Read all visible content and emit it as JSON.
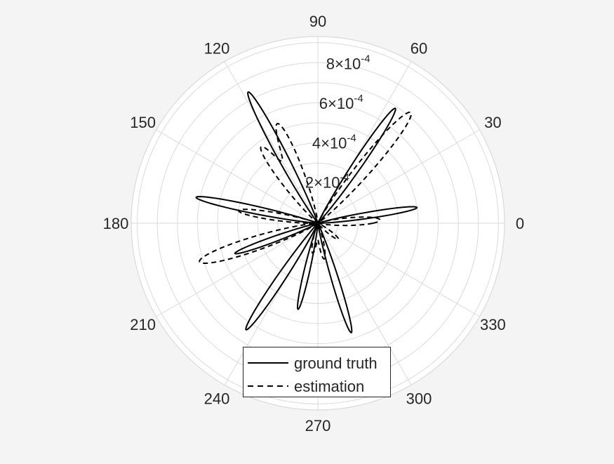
{
  "chart_data": {
    "type": "polar-line",
    "angle_ticks": [
      "0",
      "30",
      "60",
      "90",
      "120",
      "150",
      "180",
      "210",
      "240",
      "270",
      "300",
      "330"
    ],
    "angle_tick_values": [
      0,
      30,
      60,
      90,
      120,
      150,
      180,
      210,
      240,
      270,
      300,
      330
    ],
    "radial_ticks": [
      {
        "value": 0.0002,
        "mantissa": "2",
        "exponent": "-4"
      },
      {
        "value": 0.0004,
        "mantissa": "4",
        "exponent": "-4"
      },
      {
        "value": 0.0006,
        "mantissa": "6",
        "exponent": "-4"
      },
      {
        "value": 0.0008,
        "mantissa": "8",
        "exponent": "-4"
      }
    ],
    "radial_times_symbol": "×10",
    "rlim": [
      0,
      0.00093
    ],
    "grid": true,
    "legend_position": "bottom",
    "series": [
      {
        "name": "ground truth",
        "style": "solid",
        "color": "#000000",
        "lobes": [
          {
            "angle_deg": 9,
            "peak": 0.0005,
            "width_deg": 3.0
          },
          {
            "angle_deg": 56,
            "peak": 0.00069,
            "width_deg": 3.2
          },
          {
            "angle_deg": 118,
            "peak": 0.00074,
            "width_deg": 3.2
          },
          {
            "angle_deg": 168,
            "peak": 0.00062,
            "width_deg": 3.0
          },
          {
            "angle_deg": 200,
            "peak": 0.00044,
            "width_deg": 3.0
          },
          {
            "angle_deg": 236,
            "peak": 0.00064,
            "width_deg": 3.2
          },
          {
            "angle_deg": 257,
            "peak": 0.00044,
            "width_deg": 3.0
          },
          {
            "angle_deg": 287,
            "peak": 0.00057,
            "width_deg": 3.0
          }
        ]
      },
      {
        "name": "estimation",
        "style": "dashed",
        "color": "#000000",
        "lobes": [
          {
            "angle_deg": 3,
            "peak": 0.00031,
            "width_deg": 6.0
          },
          {
            "angle_deg": 50,
            "peak": 0.00072,
            "width_deg": 5.0
          },
          {
            "angle_deg": 112,
            "peak": 0.00053,
            "width_deg": 5.5
          },
          {
            "angle_deg": 127,
            "peak": 0.00046,
            "width_deg": 5.0
          },
          {
            "angle_deg": 171,
            "peak": 0.0004,
            "width_deg": 4.5
          },
          {
            "angle_deg": 198,
            "peak": 0.00062,
            "width_deg": 5.5
          },
          {
            "angle_deg": 260,
            "peak": 0.00015,
            "width_deg": 6.0
          },
          {
            "angle_deg": 280,
            "peak": 0.00018,
            "width_deg": 6.0
          },
          {
            "angle_deg": 322,
            "peak": 0.00013,
            "width_deg": 6.0
          }
        ]
      }
    ]
  },
  "legend": {
    "items": [
      {
        "label": "ground truth"
      },
      {
        "label": "estimation"
      }
    ]
  },
  "colors": {
    "background": "#f4f4f4",
    "plot_background": "#ffffff",
    "grid": "#dadada",
    "text": "#262626",
    "line": "#000000"
  }
}
